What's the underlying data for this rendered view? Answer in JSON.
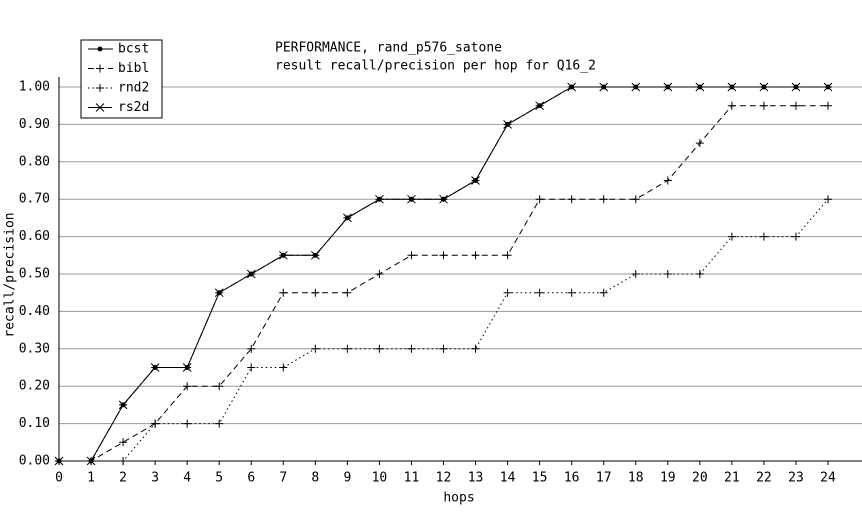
{
  "chart_data": {
    "type": "line",
    "title": "PERFORMANCE, rand_p576_satone",
    "subtitle": "result recall/precision per hop for Q16_2",
    "x_label": "hops",
    "y_label": "recall/precision",
    "x": [
      0,
      1,
      2,
      3,
      4,
      5,
      6,
      7,
      8,
      9,
      10,
      11,
      12,
      13,
      14,
      15,
      16,
      17,
      18,
      19,
      20,
      21,
      22,
      23,
      24
    ],
    "xlim": [
      0,
      24
    ],
    "xticks": [
      0,
      1,
      2,
      3,
      4,
      5,
      6,
      7,
      8,
      9,
      10,
      11,
      12,
      13,
      14,
      15,
      16,
      17,
      18,
      19,
      20,
      21,
      22,
      23,
      24
    ],
    "ylim": [
      0,
      1
    ],
    "yticks": [
      {
        "value": 0,
        "label": "0.00"
      },
      {
        "value": 0.1,
        "label": "0.10"
      },
      {
        "value": 0.2,
        "label": "0.20"
      },
      {
        "value": 0.3,
        "label": "0.30"
      },
      {
        "value": 0.4,
        "label": "0.40"
      },
      {
        "value": 0.5,
        "label": "0.50"
      },
      {
        "value": 0.6,
        "label": "0.60"
      },
      {
        "value": 0.7,
        "label": "0.70"
      },
      {
        "value": 0.8,
        "label": "0.80"
      },
      {
        "value": 0.9,
        "label": "0.90"
      },
      {
        "value": 1,
        "label": "1.00"
      }
    ],
    "grid": true,
    "legend": "top-left",
    "series": [
      {
        "name": "bcst",
        "color": "#000000",
        "style": "solid",
        "marker": "dot",
        "values": [
          0,
          0,
          0.15,
          0.25,
          0.25,
          0.45,
          0.5,
          0.55,
          0.55,
          0.65,
          0.7,
          0.7,
          0.7,
          0.75,
          0.9,
          0.95,
          1,
          1,
          1,
          1,
          1,
          1,
          1,
          1,
          1
        ]
      },
      {
        "name": "bibl",
        "color": "#000000",
        "style": "dashed",
        "marker": "plus",
        "values": [
          0,
          0,
          0.05,
          0.1,
          0.2,
          0.2,
          0.3,
          0.45,
          0.45,
          0.45,
          0.5,
          0.55,
          0.55,
          0.55,
          0.55,
          0.7,
          0.7,
          0.7,
          0.7,
          0.75,
          0.85,
          0.95,
          0.95,
          0.95,
          0.95
        ]
      },
      {
        "name": "rnd2",
        "color": "#000000",
        "style": "dotted",
        "marker": "plus",
        "values": [
          0,
          0,
          0,
          0.1,
          0.1,
          0.1,
          0.25,
          0.25,
          0.3,
          0.3,
          0.3,
          0.3,
          0.3,
          0.3,
          0.45,
          0.45,
          0.45,
          0.45,
          0.5,
          0.5,
          0.5,
          0.6,
          0.6,
          0.6,
          0.7
        ]
      },
      {
        "name": "rs2d",
        "color": "#000000",
        "style": "dashdot",
        "marker": "x",
        "values": [
          0,
          0,
          0.15,
          0.25,
          0.25,
          0.45,
          0.5,
          0.55,
          0.55,
          0.65,
          0.7,
          0.7,
          0.7,
          0.75,
          0.9,
          0.95,
          1,
          1,
          1,
          1,
          1,
          1,
          1,
          1,
          1
        ]
      }
    ]
  }
}
